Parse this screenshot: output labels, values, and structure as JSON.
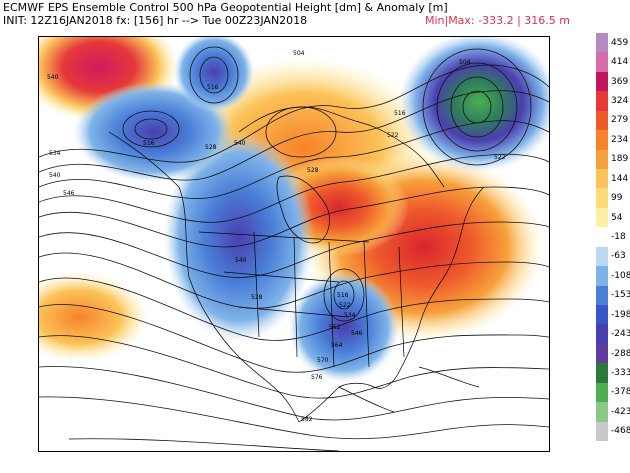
{
  "header": {
    "title": "ECMWF EPS Ensemble Control 500 hPa Geopotential Height [dm] & Anomaly [m]",
    "init": "INIT: 12Z16JAN2018 fx: [156] hr --> Tue 00Z23JAN2018",
    "minmax": "Min|Max: -333.2 | 316.5 m"
  },
  "colorbar": {
    "ticks": [
      "459",
      "414",
      "369",
      "324",
      "279",
      "234",
      "189",
      "144",
      "99",
      "54",
      "-18",
      "-63",
      "-108",
      "-153",
      "-198",
      "-243",
      "-288",
      "-333",
      "-378",
      "-423",
      "-468"
    ],
    "colors": [
      "#b48ac0",
      "#d36ea8",
      "#c2185b",
      "#e5383b",
      "#ef5a2c",
      "#f7822a",
      "#f7a13b",
      "#fbc359",
      "#fcdc7a",
      "#fdf0a6",
      "#ffffff",
      "#bcd8f2",
      "#7fb3e8",
      "#4a7fd8",
      "#3a55c8",
      "#4a3fae",
      "#5e3d9c",
      "#2b7a3a",
      "#4caf50",
      "#8bc78b",
      "#c9c9c9"
    ]
  },
  "map": {
    "contour_labels": [
      "540",
      "516",
      "504",
      "516",
      "528",
      "540",
      "534",
      "540",
      "546",
      "528",
      "522",
      "516",
      "540",
      "528",
      "516",
      "522",
      "534",
      "546",
      "552",
      "564",
      "570",
      "576",
      "582",
      "522",
      "504"
    ],
    "features": [
      "ridge-anomaly-east",
      "trough-anomaly-west",
      "low-northeast-pacific",
      "low-gulf",
      "high-atlantic"
    ]
  }
}
